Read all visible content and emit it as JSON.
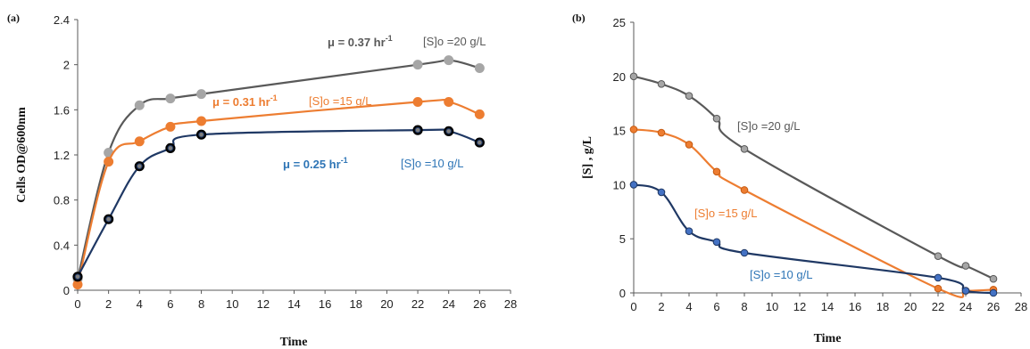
{
  "colors": {
    "gray": "#7f7f7f",
    "gray_marker": "#a6a6a6",
    "orange": "#ed7d31",
    "navy": "#1f3864",
    "blue": "#2e75b6",
    "axis": "#595959"
  },
  "chart_data": [
    {
      "type": "line",
      "panel_label": "(a)",
      "xlabel": "Time",
      "ylabel": "Cells OD@600nm",
      "xlim": [
        0,
        28
      ],
      "ylim": [
        0,
        2.4
      ],
      "xticks": [
        0,
        2,
        4,
        6,
        8,
        10,
        12,
        14,
        16,
        18,
        20,
        22,
        24,
        26,
        28
      ],
      "yticks": [
        "0",
        "0.4",
        "0.8",
        "1.2",
        "1.6",
        "2",
        "2.4"
      ],
      "x": [
        0,
        2,
        4,
        6,
        8,
        22,
        24,
        26
      ],
      "series": [
        {
          "name": "[S]o =20 g/L",
          "mu": "μ = 0.37 hr",
          "mu_sup": "-1",
          "values": [
            0.1,
            1.22,
            1.64,
            1.7,
            1.74,
            2.0,
            2.04,
            1.97
          ]
        },
        {
          "name": "[S]o =15 g/L",
          "mu": "μ = 0.31 hr",
          "mu_sup": "-1",
          "values": [
            0.05,
            1.14,
            1.32,
            1.45,
            1.5,
            1.67,
            1.67,
            1.56
          ]
        },
        {
          "name": "[S]o =10 g/L",
          "mu": "μ = 0.25 hr",
          "mu_sup": "-1",
          "values": [
            0.12,
            0.63,
            1.1,
            1.26,
            1.38,
            1.42,
            1.41,
            1.31
          ]
        }
      ]
    },
    {
      "type": "line",
      "panel_label": "(b)",
      "xlabel": "Time",
      "ylabel": "[S] , g/L",
      "xlim": [
        0,
        28
      ],
      "ylim": [
        0,
        25
      ],
      "xticks": [
        0,
        2,
        4,
        6,
        8,
        10,
        12,
        14,
        16,
        18,
        20,
        22,
        24,
        26,
        28
      ],
      "yticks": [
        "0",
        "5",
        "10",
        "15",
        "20",
        "25"
      ],
      "x": [
        0,
        2,
        4,
        6,
        8,
        22,
        24,
        26
      ],
      "series": [
        {
          "name": "[S]o =20 g/L",
          "values": [
            20,
            19.3,
            18.2,
            16.1,
            13.3,
            3.4,
            2.5,
            1.3
          ]
        },
        {
          "name": "[S]o =15 g/L",
          "values": [
            15.1,
            14.8,
            13.7,
            11.2,
            9.5,
            0.4,
            0.2,
            0.3
          ]
        },
        {
          "name": "[S]o =10 g/L",
          "values": [
            10,
            9.3,
            5.7,
            4.7,
            3.7,
            1.4,
            0.2,
            0.0
          ]
        }
      ]
    }
  ]
}
